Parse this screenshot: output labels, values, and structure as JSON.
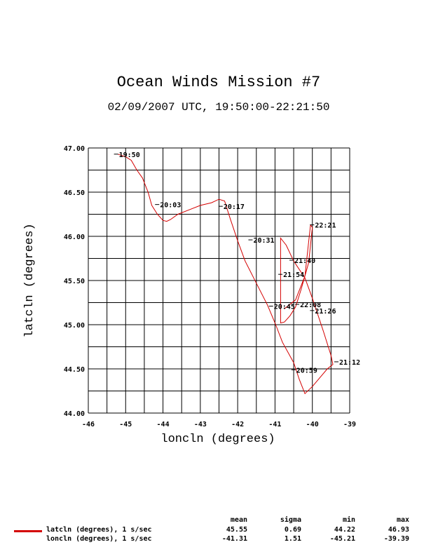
{
  "chart_data": {
    "type": "line",
    "title": "Ocean Winds Mission #7",
    "subtitle": "02/09/2007  UTC, 19:50:00-22:21:50",
    "xlabel": "loncln (degrees)",
    "ylabel": "latcln (degrees)",
    "xlim": [
      -46,
      -39
    ],
    "ylim": [
      44.0,
      47.0
    ],
    "x_ticks": [
      "-46",
      "-45",
      "-44",
      "-43",
      "-42",
      "-41",
      "-40",
      "-39"
    ],
    "y_ticks": [
      "44.00",
      "44.50",
      "45.00",
      "45.50",
      "46.00",
      "46.50",
      "47.00"
    ],
    "grid": true,
    "line_color": "#d40000",
    "series": [
      {
        "name": "latcln (degrees), 1 s/sec",
        "x": [
          -45.21,
          -45.0,
          -44.85,
          -44.7,
          -44.55,
          -44.4,
          -44.3,
          -44.15,
          -44.0,
          -43.9,
          -43.8,
          -43.6,
          -43.3,
          -43.0,
          -42.7,
          -42.5,
          -42.35,
          -42.2,
          -42.0,
          -41.8,
          -41.5,
          -41.2,
          -41.0,
          -40.8,
          -40.5,
          -40.35,
          -40.2,
          -40.0,
          -39.8,
          -39.6,
          -39.45,
          -39.5,
          -39.7,
          -40.0,
          -40.2,
          -40.5,
          -40.7,
          -40.85,
          -40.85,
          -40.75,
          -40.6,
          -40.45,
          -40.3,
          -40.1,
          -40.0,
          -40.05,
          -40.2,
          -40.45,
          -40.75
        ],
        "y": [
          46.93,
          46.9,
          46.86,
          46.75,
          46.66,
          46.5,
          46.35,
          46.25,
          46.18,
          46.17,
          46.19,
          46.25,
          46.3,
          46.35,
          46.38,
          46.42,
          46.4,
          46.2,
          45.95,
          45.72,
          45.47,
          45.22,
          45.02,
          44.8,
          44.57,
          44.38,
          44.22,
          44.3,
          44.4,
          44.5,
          44.55,
          44.65,
          44.92,
          45.3,
          45.53,
          45.72,
          45.9,
          45.98,
          45.02,
          45.03,
          45.1,
          45.2,
          45.4,
          45.7,
          46.1,
          46.13,
          45.55,
          45.28,
          45.18
        ]
      }
    ],
    "annotations": [
      {
        "text": "19:50",
        "x": -45.2,
        "y": 46.93
      },
      {
        "text": "20:03",
        "x": -44.1,
        "y": 46.36
      },
      {
        "text": "20:17",
        "x": -42.4,
        "y": 46.34
      },
      {
        "text": "20:31",
        "x": -41.6,
        "y": 45.96
      },
      {
        "text": "20:45",
        "x": -41.05,
        "y": 45.21
      },
      {
        "text": "20:59",
        "x": -40.45,
        "y": 44.49
      },
      {
        "text": "21:12",
        "x": -39.3,
        "y": 44.58
      },
      {
        "text": "21:26",
        "x": -39.95,
        "y": 45.16
      },
      {
        "text": "21:40",
        "x": -40.5,
        "y": 45.73
      },
      {
        "text": "21:54",
        "x": -40.8,
        "y": 45.57
      },
      {
        "text": "22:08",
        "x": -40.35,
        "y": 45.23
      },
      {
        "text": "22:21",
        "x": -39.95,
        "y": 46.13
      }
    ]
  },
  "stats": {
    "headers": [
      "mean",
      "sigma",
      "min",
      "max"
    ],
    "rows": [
      {
        "label": "latcln (degrees), 1 s/sec",
        "values": [
          "45.55",
          "0.69",
          "44.22",
          "46.93"
        ],
        "color": "#d40000"
      },
      {
        "label": "loncln (degrees), 1 s/sec",
        "values": [
          "-41.31",
          "1.51",
          "-45.21",
          "-39.39"
        ],
        "color": ""
      }
    ]
  }
}
